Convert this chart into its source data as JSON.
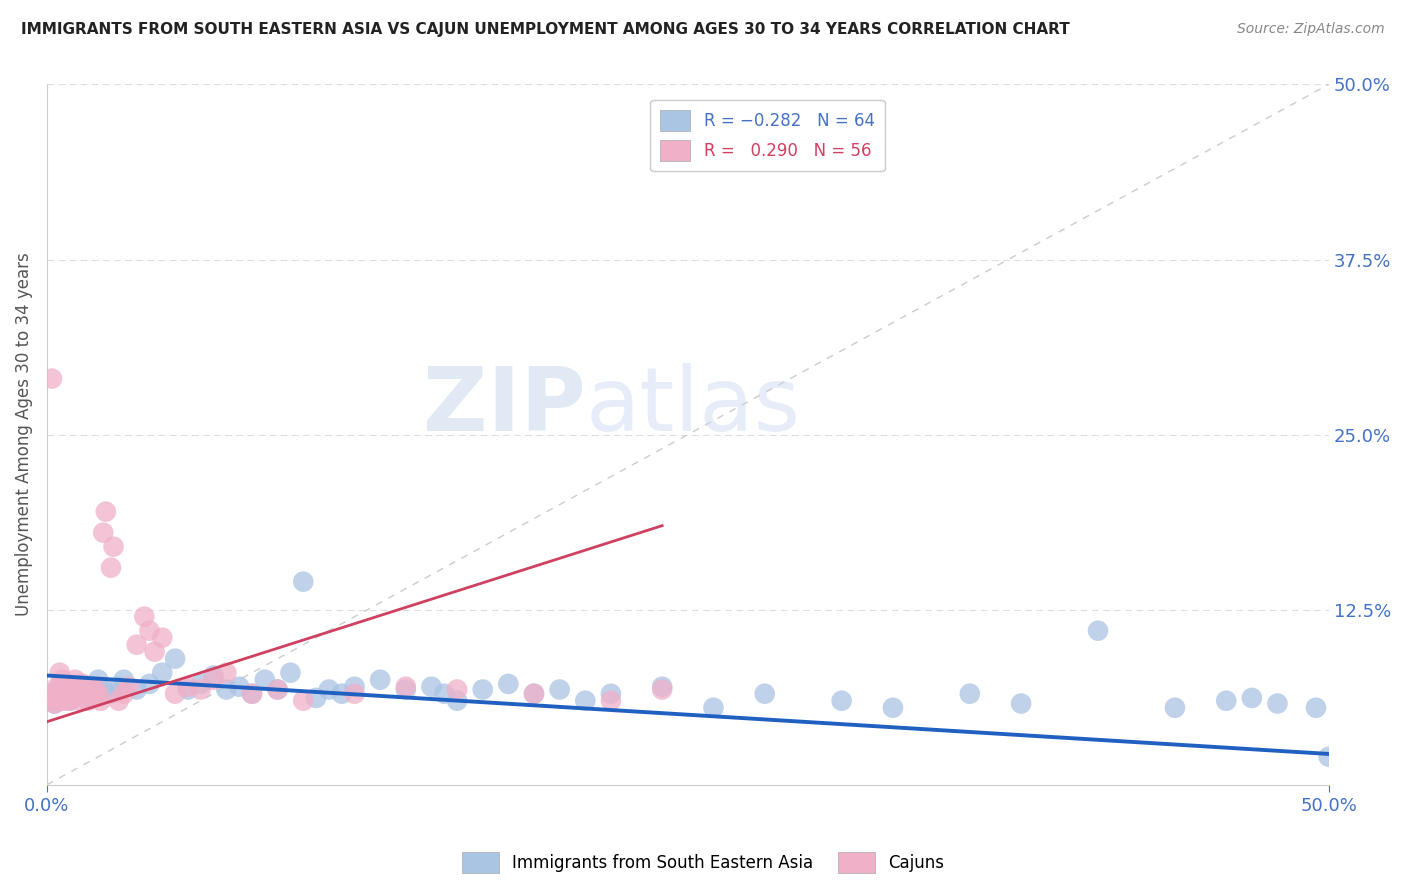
{
  "title": "IMMIGRANTS FROM SOUTH EASTERN ASIA VS CAJUN UNEMPLOYMENT AMONG AGES 30 TO 34 YEARS CORRELATION CHART",
  "source_text": "Source: ZipAtlas.com",
  "ylabel": "Unemployment Among Ages 30 to 34 years",
  "xlim": [
    0.0,
    0.5
  ],
  "ylim": [
    0.0,
    0.5
  ],
  "watermark_left": "ZIP",
  "watermark_right": "atlas",
  "series_blue": {
    "name": "Immigrants from South Eastern Asia",
    "color": "#aac4e4",
    "R": -0.282,
    "N": 64,
    "line_color": "#2060c0",
    "x": [
      0.001,
      0.002,
      0.003,
      0.004,
      0.005,
      0.006,
      0.007,
      0.008,
      0.009,
      0.01,
      0.011,
      0.012,
      0.013,
      0.015,
      0.016,
      0.018,
      0.02,
      0.022,
      0.025,
      0.028,
      0.03,
      0.035,
      0.04,
      0.045,
      0.05,
      0.055,
      0.06,
      0.065,
      0.07,
      0.075,
      0.08,
      0.085,
      0.09,
      0.095,
      0.1,
      0.105,
      0.11,
      0.115,
      0.12,
      0.13,
      0.14,
      0.15,
      0.155,
      0.16,
      0.17,
      0.18,
      0.19,
      0.2,
      0.21,
      0.22,
      0.24,
      0.26,
      0.28,
      0.31,
      0.33,
      0.36,
      0.38,
      0.41,
      0.44,
      0.46,
      0.47,
      0.48,
      0.495,
      0.5
    ],
    "y": [
      0.06,
      0.065,
      0.058,
      0.062,
      0.07,
      0.068,
      0.065,
      0.072,
      0.06,
      0.068,
      0.063,
      0.07,
      0.065,
      0.062,
      0.068,
      0.07,
      0.075,
      0.068,
      0.065,
      0.07,
      0.075,
      0.068,
      0.072,
      0.08,
      0.09,
      0.068,
      0.072,
      0.078,
      0.068,
      0.07,
      0.065,
      0.075,
      0.068,
      0.08,
      0.145,
      0.062,
      0.068,
      0.065,
      0.07,
      0.075,
      0.068,
      0.07,
      0.065,
      0.06,
      0.068,
      0.072,
      0.065,
      0.068,
      0.06,
      0.065,
      0.07,
      0.055,
      0.065,
      0.06,
      0.055,
      0.065,
      0.058,
      0.11,
      0.055,
      0.06,
      0.062,
      0.058,
      0.055,
      0.02
    ]
  },
  "series_pink": {
    "name": "Cajuns",
    "color": "#f0b0c8",
    "R": 0.29,
    "N": 56,
    "line_color": "#d04060",
    "x": [
      0.001,
      0.002,
      0.002,
      0.003,
      0.003,
      0.004,
      0.005,
      0.005,
      0.006,
      0.006,
      0.007,
      0.007,
      0.008,
      0.008,
      0.009,
      0.01,
      0.01,
      0.011,
      0.011,
      0.012,
      0.013,
      0.013,
      0.014,
      0.015,
      0.016,
      0.017,
      0.018,
      0.019,
      0.02,
      0.021,
      0.022,
      0.023,
      0.025,
      0.026,
      0.028,
      0.03,
      0.032,
      0.035,
      0.038,
      0.04,
      0.042,
      0.045,
      0.05,
      0.055,
      0.06,
      0.065,
      0.07,
      0.08,
      0.09,
      0.1,
      0.12,
      0.14,
      0.16,
      0.19,
      0.22,
      0.24
    ],
    "y": [
      0.06,
      0.062,
      0.29,
      0.058,
      0.065,
      0.07,
      0.06,
      0.08,
      0.065,
      0.075,
      0.06,
      0.068,
      0.065,
      0.072,
      0.06,
      0.062,
      0.07,
      0.075,
      0.068,
      0.065,
      0.06,
      0.068,
      0.072,
      0.065,
      0.06,
      0.07,
      0.062,
      0.068,
      0.065,
      0.06,
      0.18,
      0.195,
      0.155,
      0.17,
      0.06,
      0.065,
      0.07,
      0.1,
      0.12,
      0.11,
      0.095,
      0.105,
      0.065,
      0.07,
      0.068,
      0.075,
      0.08,
      0.065,
      0.068,
      0.06,
      0.065,
      0.07,
      0.068,
      0.065,
      0.06,
      0.068
    ]
  },
  "background_color": "#ffffff",
  "grid_color": "#dddddd",
  "title_color": "#222222",
  "source_color": "#888888",
  "right_axis_color": "#4472c4",
  "ref_line_color": "#cccccc",
  "ytick_positions": [
    0.125,
    0.25,
    0.375,
    0.5
  ],
  "ytick_labels": [
    "12.5%",
    "25.0%",
    "37.5%",
    "50.0%"
  ]
}
